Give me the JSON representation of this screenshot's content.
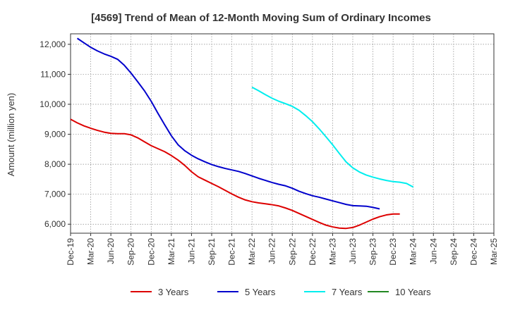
{
  "chart_data": {
    "type": "line",
    "title": "[4569]  Trend of Mean of 12-Month Moving Sum of Ordinary Incomes",
    "xlabel": "",
    "ylabel": "Amount (million yen)",
    "ylim": [
      5700,
      12350
    ],
    "yticks": [
      6000,
      7000,
      8000,
      9000,
      10000,
      11000,
      12000
    ],
    "ytick_labels": [
      "6,000",
      "7,000",
      "8,000",
      "9,000",
      "10,000",
      "11,000",
      "12,000"
    ],
    "xtick_labels": [
      "Dec-19",
      "Mar-20",
      "Jun-20",
      "Sep-20",
      "Dec-20",
      "Mar-21",
      "Jun-21",
      "Sep-21",
      "Dec-21",
      "Mar-22",
      "Jun-22",
      "Sep-22",
      "Dec-22",
      "Mar-23",
      "Jun-23",
      "Sep-23",
      "Dec-23",
      "Mar-24",
      "Jun-24",
      "Sep-24",
      "Dec-24",
      "Mar-25"
    ],
    "grid": true,
    "legend_position": "bottom",
    "series": [
      {
        "name": "3 Years",
        "color": "#dd0000",
        "start": 0,
        "values": [
          9500,
          9380,
          9280,
          9200,
          9130,
          9070,
          9030,
          9020,
          9020,
          8980,
          8880,
          8750,
          8620,
          8520,
          8420,
          8290,
          8140,
          7960,
          7750,
          7580,
          7470,
          7360,
          7250,
          7130,
          7010,
          6900,
          6810,
          6750,
          6710,
          6680,
          6650,
          6610,
          6540,
          6460,
          6360,
          6260,
          6160,
          6060,
          5970,
          5910,
          5870,
          5860,
          5890,
          5970,
          6070,
          6170,
          6250,
          6310,
          6340,
          6340
        ]
      },
      {
        "name": "5 Years",
        "color": "#0000cc",
        "start": 1,
        "values": [
          12200,
          12050,
          11900,
          11780,
          11680,
          11600,
          11500,
          11300,
          11040,
          10750,
          10450,
          10100,
          9700,
          9320,
          8950,
          8650,
          8450,
          8300,
          8180,
          8080,
          7990,
          7920,
          7860,
          7810,
          7760,
          7690,
          7610,
          7530,
          7460,
          7390,
          7330,
          7280,
          7200,
          7100,
          7020,
          6950,
          6900,
          6840,
          6780,
          6720,
          6660,
          6620,
          6610,
          6600,
          6560,
          6510
        ]
      },
      {
        "name": "7 Years",
        "color": "#00eeee",
        "start": 27,
        "values": [
          10570,
          10450,
          10320,
          10200,
          10100,
          10020,
          9930,
          9800,
          9620,
          9420,
          9180,
          8920,
          8650,
          8360,
          8080,
          7880,
          7740,
          7640,
          7570,
          7510,
          7460,
          7420,
          7400,
          7360,
          7240
        ]
      },
      {
        "name": "10 Years",
        "color": "#228822",
        "start": 0,
        "values": []
      }
    ]
  }
}
